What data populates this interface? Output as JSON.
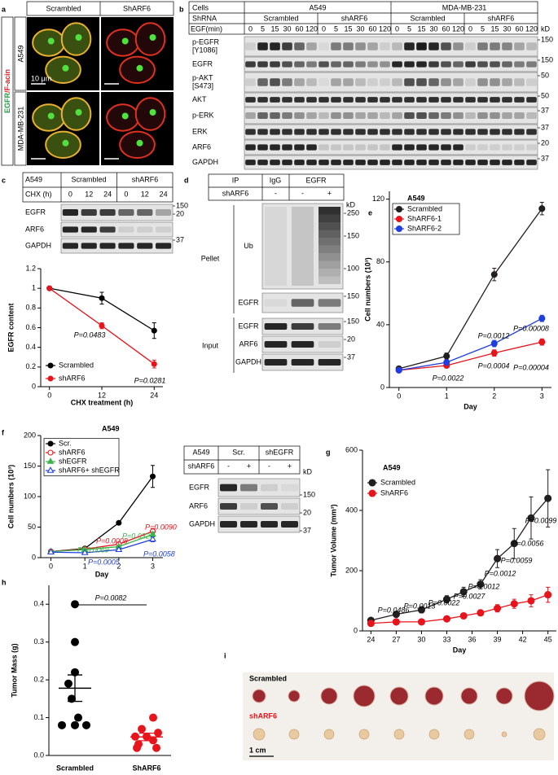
{
  "panel_labels": [
    "a",
    "b",
    "c",
    "d",
    "e",
    "f",
    "g",
    "h",
    "i"
  ],
  "panel_a": {
    "columns": [
      "Scrambled",
      "ShARF6"
    ],
    "rows": [
      "A549",
      "MDA-MB-231"
    ],
    "stain": [
      "EGFR",
      "/F-acin"
    ],
    "scale": "10 μm"
  },
  "panel_b": {
    "cells_label": "Cells",
    "cells": [
      "A549",
      "MDA-MB-231"
    ],
    "shrna_label": "ShRNA",
    "shrna": [
      "Scrambled",
      "shARF6",
      "Scrambled",
      "shARF6"
    ],
    "egf_label": "EGF(min)",
    "egf_min": [
      "0",
      "5",
      "15",
      "30",
      "60",
      "120"
    ],
    "kd": "kD",
    "blots": [
      {
        "label": [
          "p-EGFR",
          "[Y1086]"
        ],
        "marker": "150"
      },
      {
        "label": [
          "EGFR"
        ],
        "marker": "150"
      },
      {
        "label": [
          "p-AKT",
          "[S473]"
        ],
        "marker": "50"
      },
      {
        "label": [
          "AKT"
        ],
        "marker": "50"
      },
      {
        "label": [
          "p-ERK"
        ],
        "marker": "37"
      },
      {
        "label": [
          "ERK"
        ],
        "marker": "37"
      },
      {
        "label": [
          "ARF6"
        ],
        "marker": "20"
      },
      {
        "label": [
          "GAPDH"
        ],
        "marker": "37"
      }
    ]
  },
  "panel_c": {
    "cell": "A549",
    "groups": [
      "Scrambled",
      "shARF6"
    ],
    "chx_label": "CHX (h)",
    "chx": [
      "0",
      "12",
      "24"
    ],
    "blots": [
      {
        "label": "EGFR",
        "markers": [
          "150",
          "20"
        ]
      },
      {
        "label": "ARF6"
      },
      {
        "label": "GAPDH",
        "markers": [
          "37"
        ]
      }
    ]
  },
  "panel_d": {
    "ip_label": "IP",
    "ip": [
      "IgG",
      "EGFR"
    ],
    "shrna_label": "shARF6",
    "shrna": [
      "-",
      "-",
      "+"
    ],
    "kd": "kD",
    "groups": [
      {
        "name": "Pellet",
        "blots": [
          {
            "label": "Ub",
            "markers": [
              "250",
              "150",
              "100"
            ]
          },
          {
            "label": "EGFR",
            "markers": [
              "150"
            ]
          }
        ]
      },
      {
        "name": "Input",
        "blots": [
          {
            "label": "EGFR",
            "markers": [
              "150"
            ]
          },
          {
            "label": "ARF6",
            "markers": [
              "20"
            ]
          },
          {
            "label": "GAPDH",
            "markers": [
              "37"
            ]
          }
        ]
      }
    ]
  },
  "panel_f_blot": {
    "cell": "A549",
    "groups": [
      "Scr.",
      "shEGFR"
    ],
    "shrna_label": "shARF6",
    "shrna": [
      "-",
      "+",
      "-",
      "+"
    ],
    "kd": "kD",
    "blots": [
      {
        "label": "EGFR",
        "markers": [
          "150"
        ]
      },
      {
        "label": "ARF6",
        "markers": [
          "20"
        ]
      },
      {
        "label": "GAPDH",
        "markers": [
          "37"
        ]
      }
    ]
  },
  "panel_i": {
    "rows": [
      "Scrambled",
      "shARF6"
    ],
    "scale": "1 cm"
  },
  "chart_data": [
    {
      "type": "line",
      "ylabel": "EGFR content",
      "xlabel": "CHX treatment (h)",
      "x": [
        0,
        12,
        24
      ],
      "xlim": [
        -2,
        26
      ],
      "xticks": [
        0,
        12,
        24
      ],
      "ylim": [
        0,
        1.2
      ],
      "yticks": [
        0,
        0.2,
        0.4,
        0.6,
        0.8,
        1,
        1.2
      ],
      "legend": "lower left",
      "series": [
        {
          "name": "Scrambled",
          "color": "#000000",
          "marker": "circle",
          "values": [
            1,
            0.9,
            0.57
          ],
          "errors": [
            0,
            0.06,
            0.08
          ]
        },
        {
          "name": "shARF6",
          "color": "#e8141c",
          "marker": "circle",
          "values": [
            1,
            0.62,
            0.23
          ],
          "errors": [
            0,
            0.03,
            0.04
          ]
        }
      ],
      "annotations": [
        {
          "text": "P=0.0483",
          "color": "#000000"
        },
        {
          "text": "P=0.0281",
          "color": "#000000"
        }
      ]
    },
    {
      "type": "line",
      "title": "A549",
      "ylabel": "Cell numbers (10³)",
      "xlabel": "Day",
      "x": [
        0,
        1,
        2,
        3
      ],
      "xlim": [
        -0.2,
        3.2
      ],
      "xticks": [
        0,
        1,
        2,
        3
      ],
      "ylim": [
        0,
        125
      ],
      "yticks": [
        0,
        40,
        80,
        120
      ],
      "legend": "upper left",
      "series": [
        {
          "name": "Scrambled",
          "color": "#231f20",
          "marker": "circle",
          "values": [
            12,
            20,
            72,
            114
          ],
          "errors": [
            1,
            2,
            4,
            4
          ]
        },
        {
          "name": "ShARF6-1",
          "color": "#e8141c",
          "marker": "circle",
          "values": [
            11,
            14,
            22,
            29
          ],
          "errors": [
            1,
            1,
            2,
            2
          ]
        },
        {
          "name": "ShARF6-2",
          "color": "#1f3ee0",
          "marker": "circle",
          "values": [
            11,
            16,
            28,
            44
          ],
          "errors": [
            1,
            1,
            2,
            2
          ]
        }
      ],
      "annotations": [
        {
          "text": "P=0.0022",
          "color": "#000000"
        },
        {
          "text": "P=0.0012",
          "color": "#000000"
        },
        {
          "text": "P=0.0004",
          "color": "#000000"
        },
        {
          "text": "P=0.00008",
          "color": "#000000"
        },
        {
          "text": "P=0.00004",
          "color": "#000000"
        }
      ]
    },
    {
      "type": "line",
      "title": "A549",
      "ylabel": "Cell numbers (10³)",
      "xlabel": "Day",
      "x": [
        0,
        1,
        2,
        3
      ],
      "xlim": [
        -0.3,
        3.3
      ],
      "xticks": [
        0,
        1,
        2,
        3
      ],
      "ylim": [
        0,
        200
      ],
      "yticks": [
        0,
        50,
        100,
        150,
        200
      ],
      "legend": "upper left",
      "series": [
        {
          "name": "Scr.",
          "color": "#000000",
          "marker": "circle",
          "values": [
            10,
            15,
            57,
            133
          ],
          "errors": [
            1,
            2,
            2,
            18
          ]
        },
        {
          "name": "shARF6",
          "color": "#e8141c",
          "marker": "open-circle",
          "values": [
            10,
            14,
            22,
            43
          ],
          "errors": [
            1,
            1,
            2,
            4
          ]
        },
        {
          "name": "shEGFR",
          "color": "#3cb44b",
          "marker": "triangle",
          "values": [
            10,
            13,
            18,
            38
          ],
          "errors": [
            1,
            1,
            2,
            4
          ]
        },
        {
          "name": "shARF6+ shEGFR",
          "color": "#1f3ee0",
          "marker": "open-triangle",
          "values": [
            9,
            8,
            13,
            30
          ],
          "errors": [
            1,
            1,
            2,
            4
          ]
        }
      ],
      "annotations": [
        {
          "text": "P=0.0090",
          "color": "#e8141c"
        },
        {
          "text": "P=0.0008",
          "color": "#e8141c"
        },
        {
          "text": "P=0.0325",
          "color": "#3cb44b"
        },
        {
          "text": "P=0.0069",
          "color": "#3cb44b"
        },
        {
          "text": "P=0.0005",
          "color": "#1f3ee0"
        },
        {
          "text": "P=0.0058",
          "color": "#1f3ee0"
        }
      ]
    },
    {
      "type": "line",
      "title": "A549",
      "ylabel": "Tumor Volume (mm³)",
      "xlabel": "Day",
      "x": [
        24,
        27,
        30,
        33,
        35,
        37,
        39,
        41,
        43,
        45
      ],
      "xlim": [
        23,
        46
      ],
      "xticks": [
        24,
        27,
        30,
        33,
        36,
        39,
        42,
        45
      ],
      "ylim": [
        0,
        600
      ],
      "yticks": [
        0,
        200,
        400,
        600
      ],
      "legend": "upper left",
      "series": [
        {
          "name": "Scrambled",
          "color": "#231f20",
          "marker": "circle",
          "values": [
            35,
            55,
            70,
            105,
            130,
            155,
            240,
            290,
            375,
            440
          ],
          "errors": [
            5,
            8,
            10,
            12,
            15,
            15,
            30,
            50,
            70,
            95
          ]
        },
        {
          "name": "ShARF6",
          "color": "#e8141c",
          "marker": "circle",
          "values": [
            25,
            30,
            30,
            40,
            50,
            60,
            75,
            90,
            100,
            120
          ],
          "errors": [
            5,
            5,
            5,
            8,
            8,
            10,
            12,
            15,
            20,
            25
          ]
        }
      ],
      "annotations": [
        {
          "text": "P=0.0486",
          "color": "#000000"
        },
        {
          "text": "P=0.0013",
          "color": "#000000"
        },
        {
          "text": "P=0.0022",
          "color": "#000000"
        },
        {
          "text": "P=0.0027",
          "color": "#000000"
        },
        {
          "text": "P=0.0012",
          "color": "#000000"
        },
        {
          "text": "P=0.0012",
          "color": "#000000"
        },
        {
          "text": "P=0.0059",
          "color": "#000000"
        },
        {
          "text": "P=0.0056",
          "color": "#000000"
        },
        {
          "text": "P=0.0099",
          "color": "#000000"
        }
      ]
    },
    {
      "type": "strip",
      "ylabel": "Tumor Mass (g)",
      "categories": [
        "Scrambled",
        "ShARF6"
      ],
      "colors": [
        "#000000",
        "#e8141c"
      ],
      "values": [
        [
          0.4,
          0.3,
          0.22,
          0.19,
          0.15,
          0.1,
          0.08,
          0.08,
          0.08
        ],
        [
          0.1,
          0.07,
          0.06,
          0.05,
          0.05,
          0.04,
          0.03,
          0.02,
          0.02
        ]
      ],
      "means": [
        0.178,
        0.049
      ],
      "sems": [
        0.035,
        0.01
      ],
      "ylim": [
        0,
        0.45
      ],
      "yticks": [
        {
          "value": 0,
          "label": "0.0"
        },
        0.1,
        0.2,
        0.3,
        0.4
      ],
      "annotation": "P=0.0082"
    }
  ]
}
